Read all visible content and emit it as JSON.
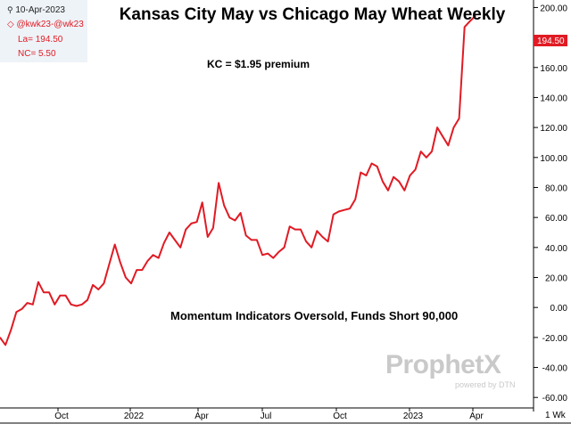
{
  "header": {
    "date": "10-Apr-2023",
    "symbol": "@kwk23-@wk23",
    "last": "La= 194.50",
    "net_change": "NC= 5.50"
  },
  "annotations": {
    "premium": "KC =  $1.95 premium",
    "momentum": "Momentum Indicators Oversold, Funds Short 90,000"
  },
  "watermark": {
    "brand": "ProphetX",
    "sub": "powered by DTN"
  },
  "colors": {
    "series": "#e01b24",
    "last_badge": "#e01b24",
    "axis": "#000000",
    "grid": "#dddddd",
    "info_bg": "#eef3f8"
  },
  "chart_data": {
    "type": "line",
    "title": "Kansas City May vs Chicago May Wheat Weekly",
    "xlabel": "",
    "ylabel": "",
    "period_label": "1 Wk",
    "last_value_label": "194.50",
    "x_ticks": [
      "Oct",
      "2022",
      "Apr",
      "Jul",
      "Oct",
      "2023",
      "Apr"
    ],
    "y_ticks": [
      200.0,
      180.0,
      160.0,
      140.0,
      120.0,
      100.0,
      80.0,
      60.0,
      40.0,
      20.0,
      0.0,
      -20.0,
      -40.0,
      -60.0
    ],
    "ylim": [
      -67,
      205
    ],
    "grid": false,
    "series": [
      {
        "name": "@kwk23-@wk23",
        "values": [
          -20,
          -25,
          -15,
          -3,
          -1,
          3,
          2,
          17,
          10,
          10,
          2,
          8,
          8,
          2,
          1,
          2,
          5,
          15,
          12,
          16,
          29,
          42,
          30,
          20,
          16,
          25,
          25,
          31,
          35,
          33,
          43,
          50,
          45,
          40,
          52,
          56,
          57,
          70,
          47,
          53,
          83,
          68,
          60,
          58,
          63,
          48,
          45,
          45,
          35,
          36,
          33,
          37,
          40,
          54,
          52,
          52,
          44,
          40,
          51,
          47,
          44,
          62,
          64,
          65,
          66,
          72,
          90,
          88,
          96,
          94,
          84,
          78,
          87,
          84,
          78,
          88,
          92,
          104,
          100,
          104,
          120,
          114,
          108,
          120,
          126,
          187,
          191,
          194.5
        ]
      }
    ]
  }
}
